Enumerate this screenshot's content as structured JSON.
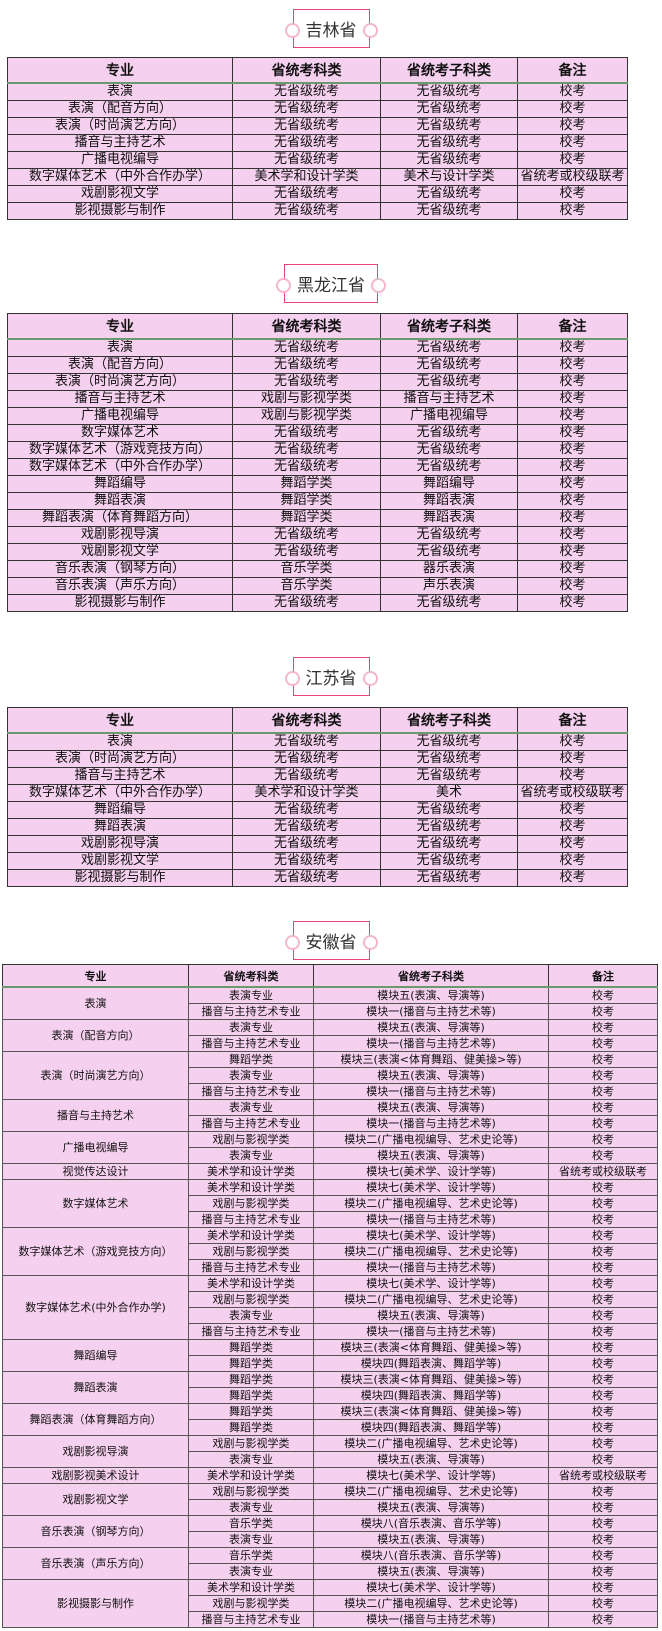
{
  "headers": [
    "专业",
    "省统考科类",
    "省统考子科类",
    "备注"
  ],
  "sections": [
    {
      "title": "吉林省",
      "rows": [
        [
          "表演",
          "无省级统考",
          "无省级统考",
          "校考"
        ],
        [
          "表演（配音方向）",
          "无省级统考",
          "无省级统考",
          "校考"
        ],
        [
          "表演（时尚演艺方向）",
          "无省级统考",
          "无省级统考",
          "校考"
        ],
        [
          "播音与主持艺术",
          "无省级统考",
          "无省级统考",
          "校考"
        ],
        [
          "广播电视编导",
          "无省级统考",
          "无省级统考",
          "校考"
        ],
        [
          "数字媒体艺术（中外合作办学）",
          "美术学和设计学类",
          "美术与设计学类",
          "省统考或校级联考"
        ],
        [
          "戏剧影视文学",
          "无省级统考",
          "无省级统考",
          "校考"
        ],
        [
          "影视摄影与制作",
          "无省级统考",
          "无省级统考",
          "校考"
        ]
      ]
    },
    {
      "title": "黑龙江省",
      "rows": [
        [
          "表演",
          "无省级统考",
          "无省级统考",
          "校考"
        ],
        [
          "表演（配音方向）",
          "无省级统考",
          "无省级统考",
          "校考"
        ],
        [
          "表演（时尚演艺方向）",
          "无省级统考",
          "无省级统考",
          "校考"
        ],
        [
          "播音与主持艺术",
          "戏剧与影视学类",
          "播音与主持艺术",
          "校考"
        ],
        [
          "广播电视编导",
          "戏剧与影视学类",
          "广播电视编导",
          "校考"
        ],
        [
          "数字媒体艺术",
          "无省级统考",
          "无省级统考",
          "校考"
        ],
        [
          "数字媒体艺术（游戏竞技方向）",
          "无省级统考",
          "无省级统考",
          "校考"
        ],
        [
          "数字媒体艺术（中外合作办学）",
          "无省级统考",
          "无省级统考",
          "校考"
        ],
        [
          "舞蹈编导",
          "舞蹈学类",
          "舞蹈编导",
          "校考"
        ],
        [
          "舞蹈表演",
          "舞蹈学类",
          "舞蹈表演",
          "校考"
        ],
        [
          "舞蹈表演（体育舞蹈方向）",
          "舞蹈学类",
          "舞蹈表演",
          "校考"
        ],
        [
          "戏剧影视导演",
          "无省级统考",
          "无省级统考",
          "校考"
        ],
        [
          "戏剧影视文学",
          "无省级统考",
          "无省级统考",
          "校考"
        ],
        [
          "音乐表演（钢琴方向）",
          "音乐学类",
          "器乐表演",
          "校考"
        ],
        [
          "音乐表演（声乐方向）",
          "音乐学类",
          "声乐表演",
          "校考"
        ],
        [
          "影视摄影与制作",
          "无省级统考",
          "无省级统考",
          "校考"
        ]
      ]
    },
    {
      "title": "江苏省",
      "rows": [
        [
          "表演",
          "无省级统考",
          "无省级统考",
          "校考"
        ],
        [
          "表演（时尚演艺方向）",
          "无省级统考",
          "无省级统考",
          "校考"
        ],
        [
          "播音与主持艺术",
          "无省级统考",
          "无省级统考",
          "校考"
        ],
        [
          "数字媒体艺术（中外合作办学）",
          "美术学和设计学类",
          "美术",
          "省统考或校级联考"
        ],
        [
          "舞蹈编导",
          "无省级统考",
          "无省级统考",
          "校考"
        ],
        [
          "舞蹈表演",
          "无省级统考",
          "无省级统考",
          "校考"
        ],
        [
          "戏剧影视导演",
          "无省级统考",
          "无省级统考",
          "校考"
        ],
        [
          "戏剧影视文学",
          "无省级统考",
          "无省级统考",
          "校考"
        ],
        [
          "影视摄影与制作",
          "无省级统考",
          "无省级统考",
          "校考"
        ]
      ]
    }
  ],
  "anhui": {
    "title": "安徽省",
    "groups": [
      {
        "major": "表演",
        "subs": [
          [
            "表演专业",
            "模块五(表演、导演等)",
            "校考"
          ],
          [
            "播音与主持艺术专业",
            "模块一(播音与主持艺术等)",
            "校考"
          ]
        ]
      },
      {
        "major": "表演（配音方向）",
        "subs": [
          [
            "表演专业",
            "模块五(表演、导演等)",
            "校考"
          ],
          [
            "播音与主持艺术专业",
            "模块一(播音与主持艺术等)",
            "校考"
          ]
        ]
      },
      {
        "major": "表演（时尚演艺方向）",
        "subs": [
          [
            "舞蹈学类",
            "模块三(表演<体育舞蹈、健美操>等)",
            "校考"
          ],
          [
            "表演专业",
            "模块五(表演、导演等)",
            "校考"
          ],
          [
            "播音与主持艺术专业",
            "模块一(播音与主持艺术等)",
            "校考"
          ]
        ]
      },
      {
        "major": "播音与主持艺术",
        "subs": [
          [
            "表演专业",
            "模块五(表演、导演等)",
            "校考"
          ],
          [
            "播音与主持艺术专业",
            "模块一(播音与主持艺术等)",
            "校考"
          ]
        ]
      },
      {
        "major": "广播电视编导",
        "subs": [
          [
            "戏剧与影视学类",
            "模块二(广播电视编导、艺术史论等)",
            "校考"
          ],
          [
            "表演专业",
            "模块五(表演、导演等)",
            "校考"
          ]
        ]
      },
      {
        "major": "视觉传达设计",
        "subs": [
          [
            "美术学和设计学类",
            "模块七(美术学、设计学等)",
            "省统考或校级联考"
          ]
        ]
      },
      {
        "major": "数字媒体艺术",
        "subs": [
          [
            "美术学和设计学类",
            "模块七(美术学、设计学等)",
            "校考"
          ],
          [
            "戏剧与影视学类",
            "模块二(广播电视编导、艺术史论等)",
            "校考"
          ],
          [
            "播音与主持艺术专业",
            "模块一(播音与主持艺术等)",
            "校考"
          ]
        ]
      },
      {
        "major": "数字媒体艺术（游戏竞技方向）",
        "subs": [
          [
            "美术学和设计学类",
            "模块七(美术学、设计学等)",
            "校考"
          ],
          [
            "戏剧与影视学类",
            "模块二(广播电视编导、艺术史论等)",
            "校考"
          ],
          [
            "播音与主持艺术专业",
            "模块一(播音与主持艺术等)",
            "校考"
          ]
        ]
      },
      {
        "major": "数字媒体艺术(中外合作办学)",
        "subs": [
          [
            "美术学和设计学类",
            "模块七(美术学、设计学等)",
            "校考"
          ],
          [
            "戏剧与影视学类",
            "模块二(广播电视编导、艺术史论等)",
            "校考"
          ],
          [
            "表演专业",
            "模块五(表演、导演等)",
            "校考"
          ],
          [
            "播音与主持艺术专业",
            "模块一(播音与主持艺术等)",
            "校考"
          ]
        ]
      },
      {
        "major": "舞蹈编导",
        "subs": [
          [
            "舞蹈学类",
            "模块三(表演<体育舞蹈、健美操>等)",
            "校考"
          ],
          [
            "舞蹈学类",
            "模块四(舞蹈表演、舞蹈学等)",
            "校考"
          ]
        ]
      },
      {
        "major": "舞蹈表演",
        "subs": [
          [
            "舞蹈学类",
            "模块三(表演<体育舞蹈、健美操>等)",
            "校考"
          ],
          [
            "舞蹈学类",
            "模块四(舞蹈表演、舞蹈学等)",
            "校考"
          ]
        ]
      },
      {
        "major": "舞蹈表演（体育舞蹈方向）",
        "subs": [
          [
            "舞蹈学类",
            "模块三(表演<体育舞蹈、健美操>等)",
            "校考"
          ],
          [
            "舞蹈学类",
            "模块四(舞蹈表演、舞蹈学等)",
            "校考"
          ]
        ]
      },
      {
        "major": "戏剧影视导演",
        "subs": [
          [
            "戏剧与影视学类",
            "模块二(广播电视编导、艺术史论等)",
            "校考"
          ],
          [
            "表演专业",
            "模块五(表演、导演等)",
            "校考"
          ]
        ]
      },
      {
        "major": "戏剧影视美术设计",
        "subs": [
          [
            "美术学和设计学类",
            "模块七(美术学、设计学等)",
            "省统考或校级联考"
          ]
        ]
      },
      {
        "major": "戏剧影视文学",
        "subs": [
          [
            "戏剧与影视学类",
            "模块二(广播电视编导、艺术史论等)",
            "校考"
          ],
          [
            "表演专业",
            "模块五(表演、导演等)",
            "校考"
          ]
        ]
      },
      {
        "major": "音乐表演（钢琴方向）",
        "subs": [
          [
            "音乐学类",
            "模块八(音乐表演、音乐学等)",
            "校考"
          ],
          [
            "表演专业",
            "模块五(表演、导演等)",
            "校考"
          ]
        ]
      },
      {
        "major": "音乐表演（声乐方向）",
        "subs": [
          [
            "音乐学类",
            "模块八(音乐表演、音乐学等)",
            "校考"
          ],
          [
            "表演专业",
            "模块五(表演、导演等)",
            "校考"
          ]
        ]
      },
      {
        "major": "影视摄影与制作",
        "subs": [
          [
            "美术学和设计学类",
            "模块七(美术学、设计学等)",
            "校考"
          ],
          [
            "戏剧与影视学类",
            "模块二(广播电视编导、艺术史论等)",
            "校考"
          ],
          [
            "播音与主持艺术专业",
            "模块一(播音与主持艺术等)",
            "校考"
          ]
        ]
      }
    ]
  },
  "colors": {
    "table_bg": "#f6d0ef",
    "title_border": "#e8437a",
    "pin": "#f4b7cc"
  }
}
